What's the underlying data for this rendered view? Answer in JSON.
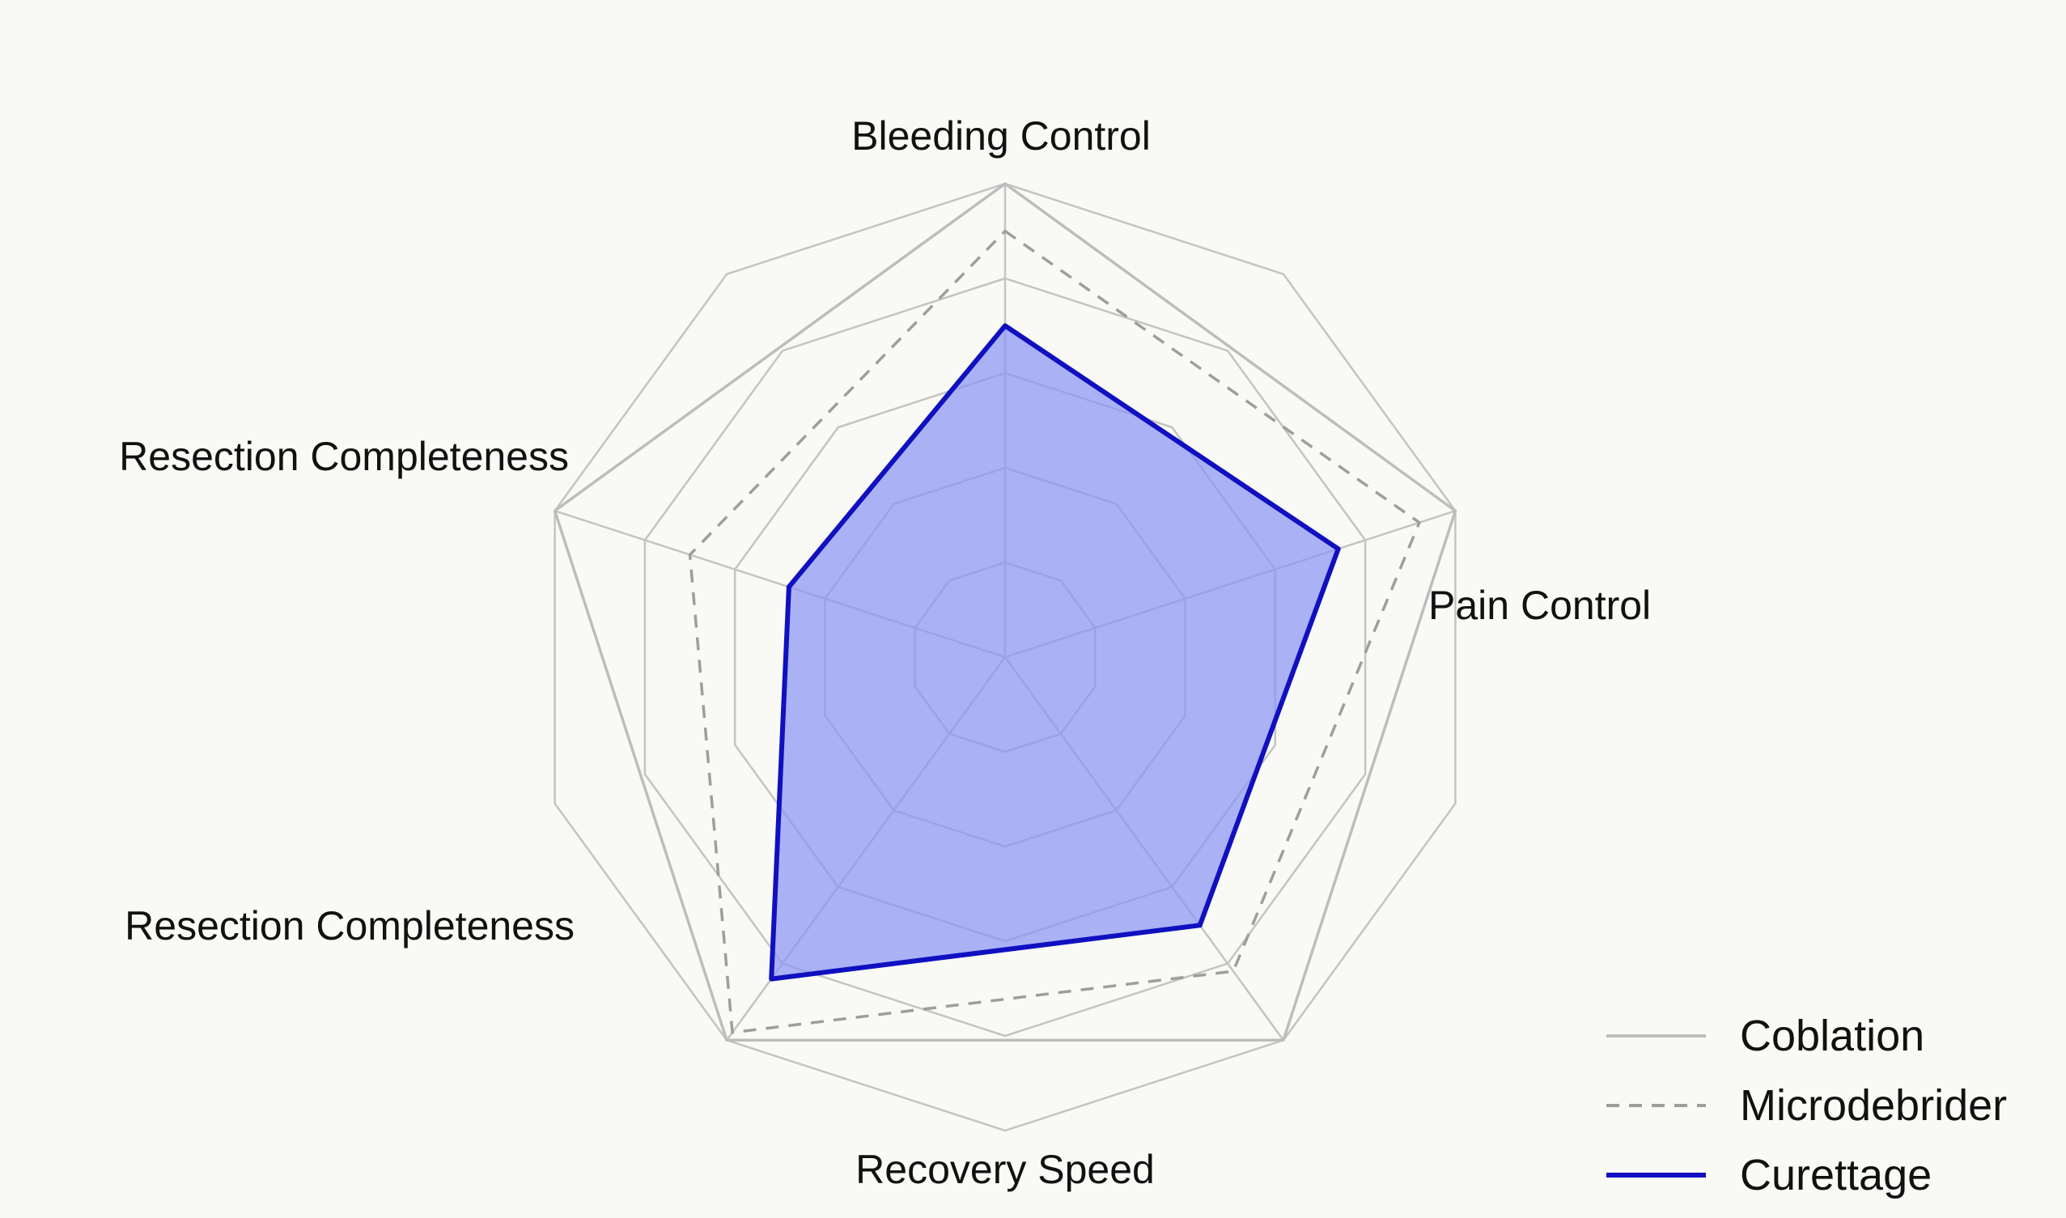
{
  "chart_data": {
    "type": "radar",
    "title": "",
    "axes": [
      "Bleeding Control",
      "Pain Control",
      "Recovery Speed",
      "Resection Completeness",
      "Resection Completeness"
    ],
    "rlim": [
      0,
      5
    ],
    "grid": true,
    "legend_position": "bottom-right",
    "series": [
      {
        "name": "Coblation",
        "values": [
          5.0,
          5.0,
          5.0,
          5.0,
          5.0
        ],
        "color": "#bdbdbd",
        "style": "solid"
      },
      {
        "name": "Microdebrider",
        "values": [
          4.5,
          4.6,
          4.1,
          4.9,
          3.5
        ],
        "color": "#9e9e9e",
        "style": "dashed"
      },
      {
        "name": "Curettage",
        "values": [
          3.5,
          3.7,
          3.5,
          4.2,
          2.4
        ],
        "color": "#1010c0",
        "style": "solid",
        "fill": "#8c94f4"
      }
    ]
  }
}
